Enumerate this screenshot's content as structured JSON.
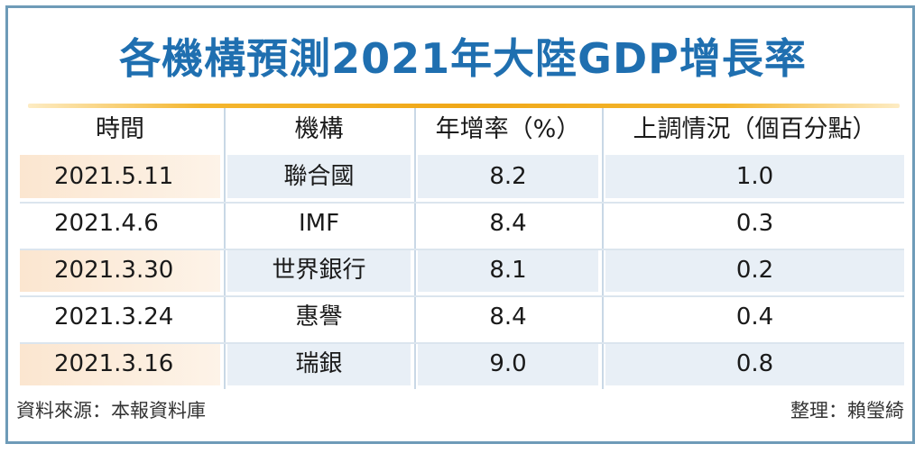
{
  "title": "各機構預測2021年大陸GDP增長率",
  "chart_data": {
    "type": "table",
    "title": "各機構預測2021年大陸GDP增長率",
    "columns": [
      "時間",
      "機構",
      "年增率（%）",
      "上調情況（個百分點）"
    ],
    "rows": [
      {
        "date": "2021.5.11",
        "org": "聯合國",
        "growth": "8.2",
        "raise": "1.0"
      },
      {
        "date": "2021.4.6",
        "org": "IMF",
        "growth": "8.4",
        "raise": "0.3"
      },
      {
        "date": "2021.3.30",
        "org": "世界銀行",
        "growth": "8.1",
        "raise": "0.2"
      },
      {
        "date": "2021.3.24",
        "org": "惠譽",
        "growth": "8.4",
        "raise": "0.4"
      },
      {
        "date": "2021.3.16",
        "org": "瑞銀",
        "growth": "9.0",
        "raise": "0.8"
      }
    ]
  },
  "footer": {
    "source": "資料來源：本報資料庫",
    "editor": "整理：賴瑩綺"
  },
  "colors": {
    "title": "#1f6fb0",
    "border": "#6e9bb8",
    "rule": "#f0a818",
    "shade_left": "#fbe6d0",
    "shade_right": "#e8eff6"
  }
}
